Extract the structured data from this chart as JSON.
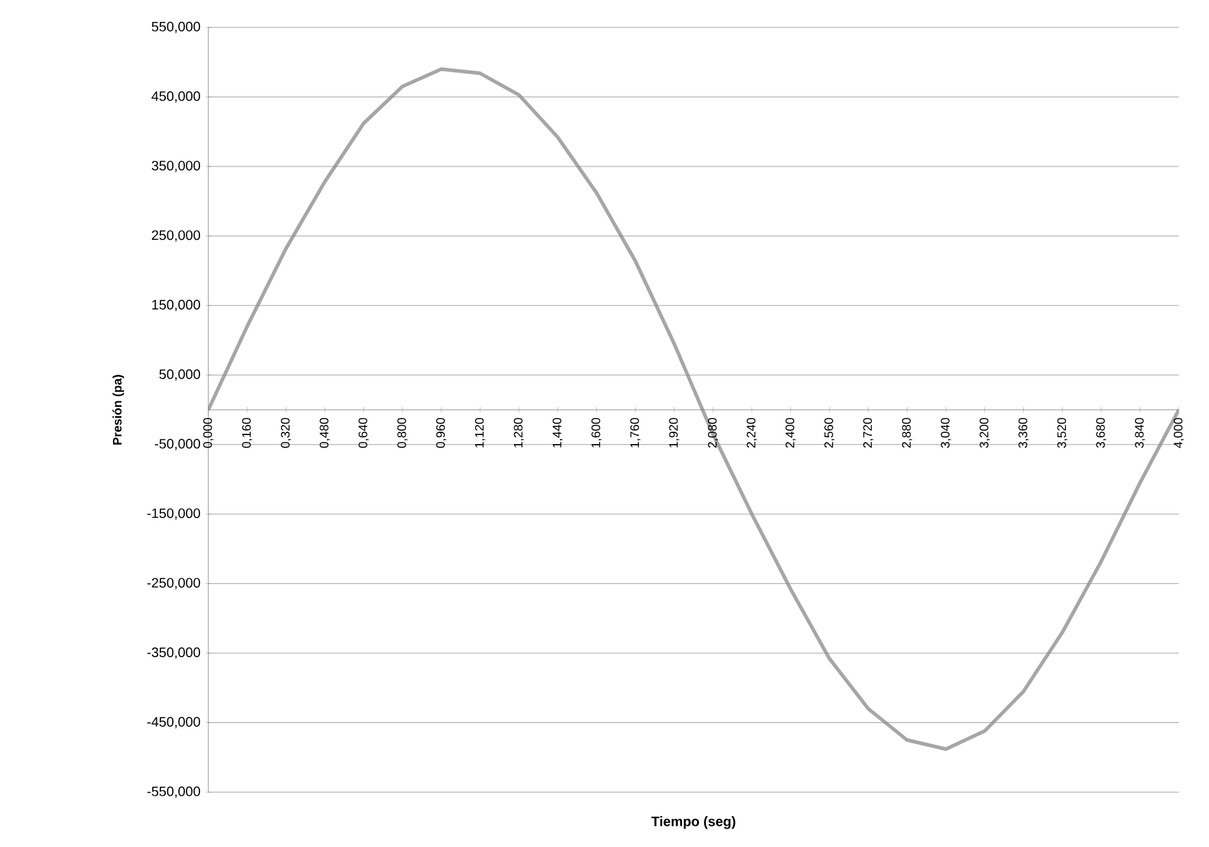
{
  "chart_data": {
    "type": "line",
    "xlabel": "Tiempo (seg)",
    "ylabel": "Presión (pa)",
    "xlim": [
      0,
      4
    ],
    "ylim": [
      -550,
      550
    ],
    "xticks": [
      {
        "value": 0,
        "label": "0,000"
      },
      {
        "value": 0.16,
        "label": "0,160"
      },
      {
        "value": 0.32,
        "label": "0,320"
      },
      {
        "value": 0.48,
        "label": "0,480"
      },
      {
        "value": 0.64,
        "label": "0,640"
      },
      {
        "value": 0.8,
        "label": "0,800"
      },
      {
        "value": 0.96,
        "label": "0,960"
      },
      {
        "value": 1.12,
        "label": "1,120"
      },
      {
        "value": 1.28,
        "label": "1,280"
      },
      {
        "value": 1.44,
        "label": "1,440"
      },
      {
        "value": 1.6,
        "label": "1,600"
      },
      {
        "value": 1.76,
        "label": "1,760"
      },
      {
        "value": 1.92,
        "label": "1,920"
      },
      {
        "value": 2.08,
        "label": "2,080"
      },
      {
        "value": 2.24,
        "label": "2,240"
      },
      {
        "value": 2.4,
        "label": "2,400"
      },
      {
        "value": 2.56,
        "label": "2,560"
      },
      {
        "value": 2.72,
        "label": "2,720"
      },
      {
        "value": 2.88,
        "label": "2,880"
      },
      {
        "value": 3.04,
        "label": "3,040"
      },
      {
        "value": 3.2,
        "label": "3,200"
      },
      {
        "value": 3.36,
        "label": "3,360"
      },
      {
        "value": 3.52,
        "label": "3,520"
      },
      {
        "value": 3.68,
        "label": "3,680"
      },
      {
        "value": 3.84,
        "label": "3,840"
      },
      {
        "value": 4,
        "label": "4,000"
      }
    ],
    "yticks": [
      {
        "value": -550,
        "label": "-550,000"
      },
      {
        "value": -450,
        "label": "-450,000"
      },
      {
        "value": -350,
        "label": "-350,000"
      },
      {
        "value": -250,
        "label": "-250,000"
      },
      {
        "value": -150,
        "label": "-150,000"
      },
      {
        "value": -50,
        "label": "-50,000"
      },
      {
        "value": 50,
        "label": "50,000"
      },
      {
        "value": 150,
        "label": "150,000"
      },
      {
        "value": 250,
        "label": "250,000"
      },
      {
        "value": 350,
        "label": "350,000"
      },
      {
        "value": 450,
        "label": "450,000"
      },
      {
        "value": 550,
        "label": "550,000"
      }
    ],
    "grid": "y",
    "line_style": "solid",
    "series": [
      {
        "color": "#a6a6a6",
        "x": [
          0,
          0.16,
          0.32,
          0.48,
          0.64,
          0.8,
          0.96,
          1.12,
          1.28,
          1.44,
          1.6,
          1.76,
          1.92,
          2.08,
          2.24,
          2.4,
          2.56,
          2.72,
          2.88,
          3.04,
          3.2,
          3.36,
          3.52,
          3.68,
          3.84,
          4
        ],
        "values": [
          0,
          120,
          232,
          328,
          412,
          465,
          490,
          484,
          453,
          392,
          312,
          214,
          95,
          -35,
          -150,
          -258,
          -358,
          -430,
          -475,
          -488,
          -462,
          -405,
          -320,
          -218,
          -105,
          0
        ]
      }
    ]
  }
}
